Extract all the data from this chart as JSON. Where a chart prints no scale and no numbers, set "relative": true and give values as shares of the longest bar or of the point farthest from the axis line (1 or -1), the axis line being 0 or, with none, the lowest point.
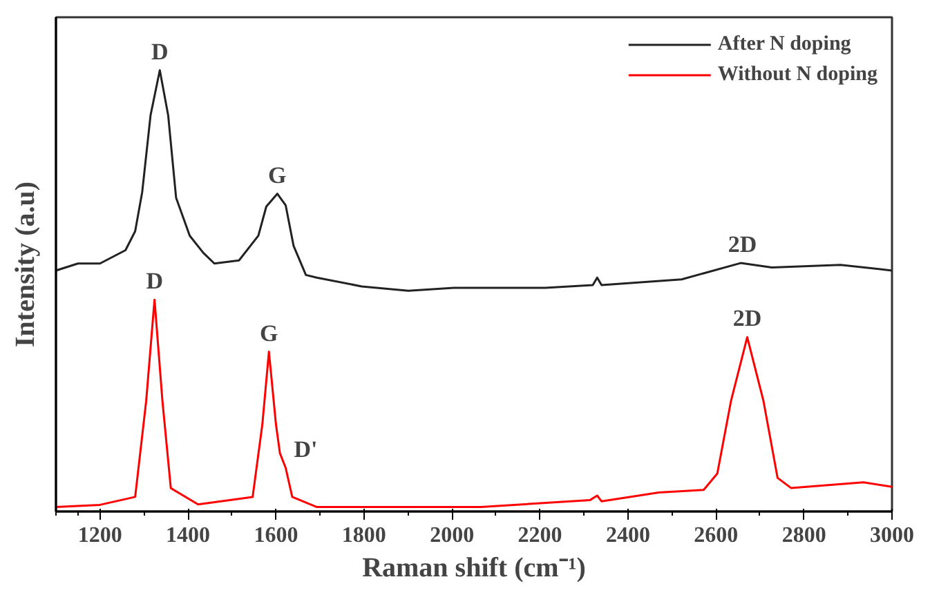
{
  "chart_data": {
    "type": "line",
    "relative": true,
    "xlabel": "Raman shift (cm⁻¹)",
    "ylabel": "Intensity (a.u)",
    "xlim": [
      1100,
      3000
    ],
    "xticks": [
      1200,
      1400,
      1600,
      1800,
      2000,
      2200,
      2400,
      2600,
      2800,
      3000
    ],
    "grid": false,
    "legend": "top right",
    "tick_labels": "x",
    "line_style": "solid",
    "marker": "none",
    "series": [
      {
        "name": "After N doping",
        "color": "#222222",
        "x": [
          1100,
          1150,
          1200,
          1258,
          1280,
          1296,
          1315,
          1336,
          1355,
          1373,
          1404,
          1435,
          1460,
          1516,
          1560,
          1578,
          1603,
          1622,
          1640,
          1668,
          1693,
          1795,
          1901,
          2004,
          2212,
          2320,
          2330,
          2340,
          2522,
          2656,
          2727,
          2883,
          3000
        ],
        "values": [
          0.546,
          0.562,
          0.562,
          0.592,
          0.635,
          0.724,
          0.898,
          1.0,
          0.898,
          0.711,
          0.625,
          0.586,
          0.562,
          0.569,
          0.625,
          0.691,
          0.72,
          0.694,
          0.602,
          0.536,
          0.53,
          0.51,
          0.5,
          0.507,
          0.507,
          0.513,
          0.53,
          0.513,
          0.526,
          0.563,
          0.553,
          0.559,
          0.546
        ]
      },
      {
        "name": "Without N doping",
        "color": "#ff0000",
        "x": [
          1100,
          1200,
          1280,
          1305,
          1324,
          1342,
          1361,
          1423,
          1547,
          1569,
          1584,
          1600,
          1609,
          1622,
          1637,
          1693,
          2004,
          2066,
          2314,
          2330,
          2340,
          2470,
          2572,
          2603,
          2634,
          2671,
          2708,
          2740,
          2771,
          2935,
          3000
        ],
        "values": [
          0.01,
          0.015,
          0.033,
          0.25,
          0.48,
          0.25,
          0.053,
          0.016,
          0.033,
          0.197,
          0.362,
          0.197,
          0.132,
          0.099,
          0.033,
          0.01,
          0.01,
          0.01,
          0.026,
          0.036,
          0.023,
          0.043,
          0.049,
          0.086,
          0.25,
          0.395,
          0.25,
          0.076,
          0.053,
          0.066,
          0.056
        ]
      }
    ],
    "annotations": [
      {
        "text": "D",
        "x": 1336,
        "y": 1.0
      },
      {
        "text": "G",
        "x": 1603,
        "y": 0.72
      },
      {
        "text": "2D",
        "x": 2660,
        "y": 0.563
      },
      {
        "text": "D",
        "x": 1324,
        "y": 0.48
      },
      {
        "text": "G",
        "x": 1584,
        "y": 0.362
      },
      {
        "text": "D'",
        "x": 1622,
        "y": 0.099
      },
      {
        "text": "2D",
        "x": 2671,
        "y": 0.395
      }
    ]
  }
}
